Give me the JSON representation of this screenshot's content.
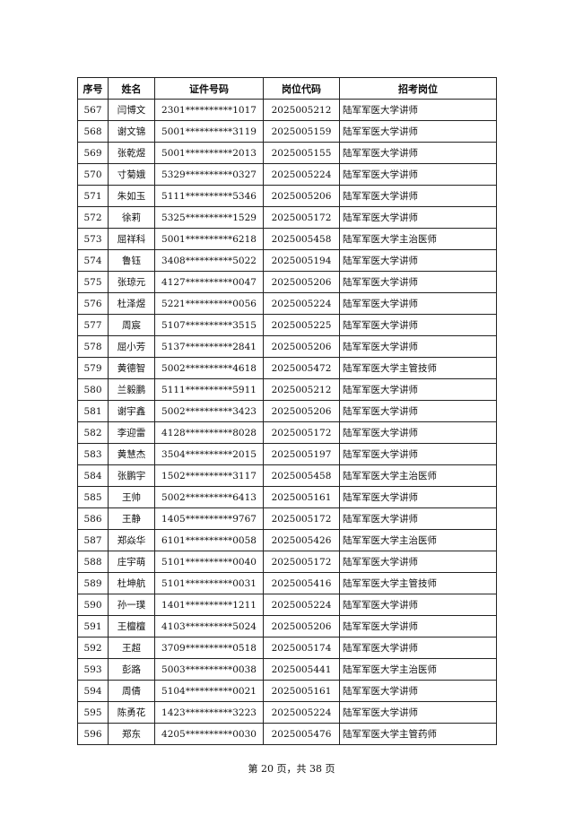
{
  "table": {
    "headers": [
      "序号",
      "姓名",
      "证件号码",
      "岗位代码",
      "招考岗位"
    ],
    "rows": [
      [
        "567",
        "闫博文",
        "2301**********1017",
        "2025005212",
        "陆军军医大学讲师"
      ],
      [
        "568",
        "谢文锦",
        "5001**********3119",
        "2025005159",
        "陆军军医大学讲师"
      ],
      [
        "569",
        "张乾煜",
        "5001**********2013",
        "2025005155",
        "陆军军医大学讲师"
      ],
      [
        "570",
        "寸菊娥",
        "5329**********0327",
        "2025005224",
        "陆军军医大学讲师"
      ],
      [
        "571",
        "朱如玉",
        "5111**********5346",
        "2025005206",
        "陆军军医大学讲师"
      ],
      [
        "572",
        "徐莉",
        "5325**********1529",
        "2025005172",
        "陆军军医大学讲师"
      ],
      [
        "573",
        "屈祥科",
        "5001**********6218",
        "2025005458",
        "陆军军医大学主治医师"
      ],
      [
        "574",
        "鲁钰",
        "3408**********5022",
        "2025005194",
        "陆军军医大学讲师"
      ],
      [
        "575",
        "张琼元",
        "4127**********0047",
        "2025005206",
        "陆军军医大学讲师"
      ],
      [
        "576",
        "杜泽煜",
        "5221**********0056",
        "2025005224",
        "陆军军医大学讲师"
      ],
      [
        "577",
        "周宸",
        "5107**********3515",
        "2025005225",
        "陆军军医大学讲师"
      ],
      [
        "578",
        "屈小芳",
        "5137**********2841",
        "2025005206",
        "陆军军医大学讲师"
      ],
      [
        "579",
        "黄德智",
        "5002**********4618",
        "2025005472",
        "陆军军医大学主管技师"
      ],
      [
        "580",
        "兰毅鹏",
        "5111**********5911",
        "2025005212",
        "陆军军医大学讲师"
      ],
      [
        "581",
        "谢宇鑫",
        "5002**********3423",
        "2025005206",
        "陆军军医大学讲师"
      ],
      [
        "582",
        "李迎雷",
        "4128**********8028",
        "2025005172",
        "陆军军医大学讲师"
      ],
      [
        "583",
        "黄慧杰",
        "3504**********2015",
        "2025005197",
        "陆军军医大学讲师"
      ],
      [
        "584",
        "张鹏宇",
        "1502**********3117",
        "2025005458",
        "陆军军医大学主治医师"
      ],
      [
        "585",
        "王帅",
        "5002**********6413",
        "2025005161",
        "陆军军医大学讲师"
      ],
      [
        "586",
        "王静",
        "1405**********9767",
        "2025005172",
        "陆军军医大学讲师"
      ],
      [
        "587",
        "郑焱华",
        "6101**********0058",
        "2025005426",
        "陆军军医大学主治医师"
      ],
      [
        "588",
        "庄宇萌",
        "5101**********0040",
        "2025005172",
        "陆军军医大学讲师"
      ],
      [
        "589",
        "杜坤航",
        "5101**********0031",
        "2025005416",
        "陆军军医大学主管技师"
      ],
      [
        "590",
        "孙一璞",
        "1401**********1211",
        "2025005224",
        "陆军军医大学讲师"
      ],
      [
        "591",
        "王檀檀",
        "4103**********5024",
        "2025005206",
        "陆军军医大学讲师"
      ],
      [
        "592",
        "王超",
        "3709**********0518",
        "2025005174",
        "陆军军医大学讲师"
      ],
      [
        "593",
        "彭路",
        "5003**********0038",
        "2025005441",
        "陆军军医大学主治医师"
      ],
      [
        "594",
        "周倩",
        "5104**********0021",
        "2025005161",
        "陆军军医大学讲师"
      ],
      [
        "595",
        "陈勇花",
        "1423**********3223",
        "2025005224",
        "陆军军医大学讲师"
      ],
      [
        "596",
        "郑东",
        "4205**********0030",
        "2025005476",
        "陆军军医大学主管药师"
      ]
    ]
  },
  "footer": {
    "page_text": "第 20 页，共 38 页"
  }
}
